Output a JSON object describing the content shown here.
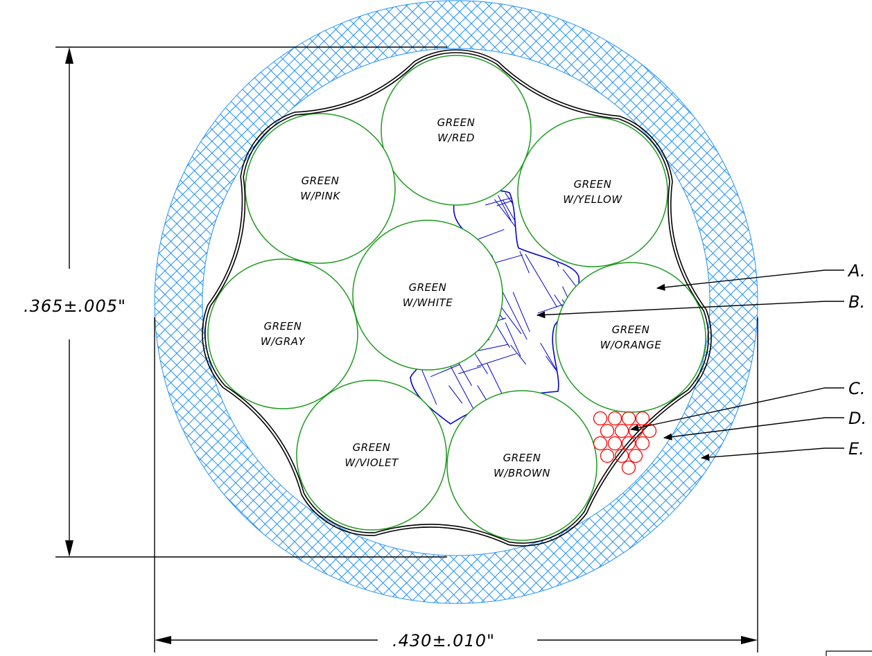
{
  "conductors": [
    {
      "line1": "GREEN",
      "line2": "W/RED"
    },
    {
      "line1": "GREEN",
      "line2": "W/YELLOW"
    },
    {
      "line1": "GREEN",
      "line2": "W/ORANGE"
    },
    {
      "line1": "GREEN",
      "line2": "W/BROWN"
    },
    {
      "line1": "GREEN",
      "line2": "W/VIOLET"
    },
    {
      "line1": "GREEN",
      "line2": "W/GRAY"
    },
    {
      "line1": "GREEN",
      "line2": "W/PINK"
    },
    {
      "line1": "GREEN",
      "line2": "W/WHITE"
    }
  ],
  "dimensions": {
    "height": ".365±.005\"",
    "width": ".430±.010\""
  },
  "callouts": [
    "A.",
    "B.",
    "C.",
    "D.",
    "E."
  ],
  "colors": {
    "conductor_outline": "#1a9a1a",
    "outer_jacket_hatch": "#1e90ff",
    "filler_hatch": "#0000cc",
    "drain_strands": "#ff0000",
    "lines": "#000000"
  }
}
